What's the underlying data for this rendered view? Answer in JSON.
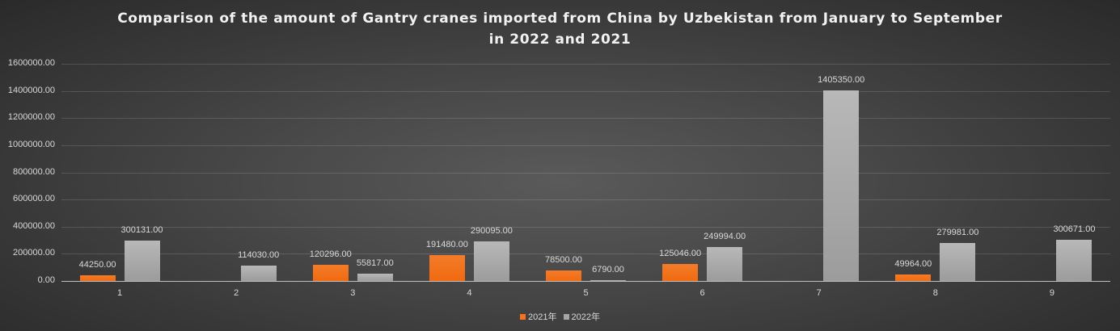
{
  "chart_data": {
    "type": "bar",
    "title": "Comparison of the amount of Gantry cranes imported from China by Uzbekistan from January to September in 2022 and 2021",
    "title_lines": [
      "Comparison of the amount of Gantry cranes imported from China by Uzbekistan from January to September",
      "in 2022 and 2021"
    ],
    "xlabel": "",
    "ylabel": "",
    "categories": [
      "1",
      "2",
      "3",
      "4",
      "5",
      "6",
      "7",
      "8",
      "9"
    ],
    "series": [
      {
        "name": "2021年",
        "color": "#f47320",
        "values": [
          44250.0,
          null,
          120296.0,
          191480.0,
          78500.0,
          125046.0,
          null,
          49964.0,
          null
        ],
        "labels": [
          "44250.00",
          "",
          "120296.00",
          "191480.00",
          "78500.00",
          "125046.00",
          "",
          "49964.00",
          ""
        ]
      },
      {
        "name": "2022年",
        "color": "#a6a6a6",
        "values": [
          300131.0,
          114030.0,
          55817.0,
          290095.0,
          6790.0,
          249994.0,
          1405350.0,
          279981.0,
          300671.0
        ],
        "labels": [
          "300131.00",
          "114030.00",
          "55817.00",
          "290095.00",
          "6790.00",
          "249994.00",
          "1405350.00",
          "279981.00",
          "300671.00"
        ]
      }
    ],
    "ylim": [
      0,
      1600000
    ],
    "yticks": [
      "0.00",
      "200000.00",
      "400000.00",
      "600000.00",
      "800000.00",
      "1000000.00",
      "1200000.00",
      "1400000.00",
      "1600000.00"
    ],
    "grid": true,
    "legend_position": "bottom",
    "data_labels": true
  },
  "legend": {
    "items": [
      {
        "label": "2021年",
        "color": "#f47320"
      },
      {
        "label": "2022年",
        "color": "#a6a6a6"
      }
    ]
  }
}
